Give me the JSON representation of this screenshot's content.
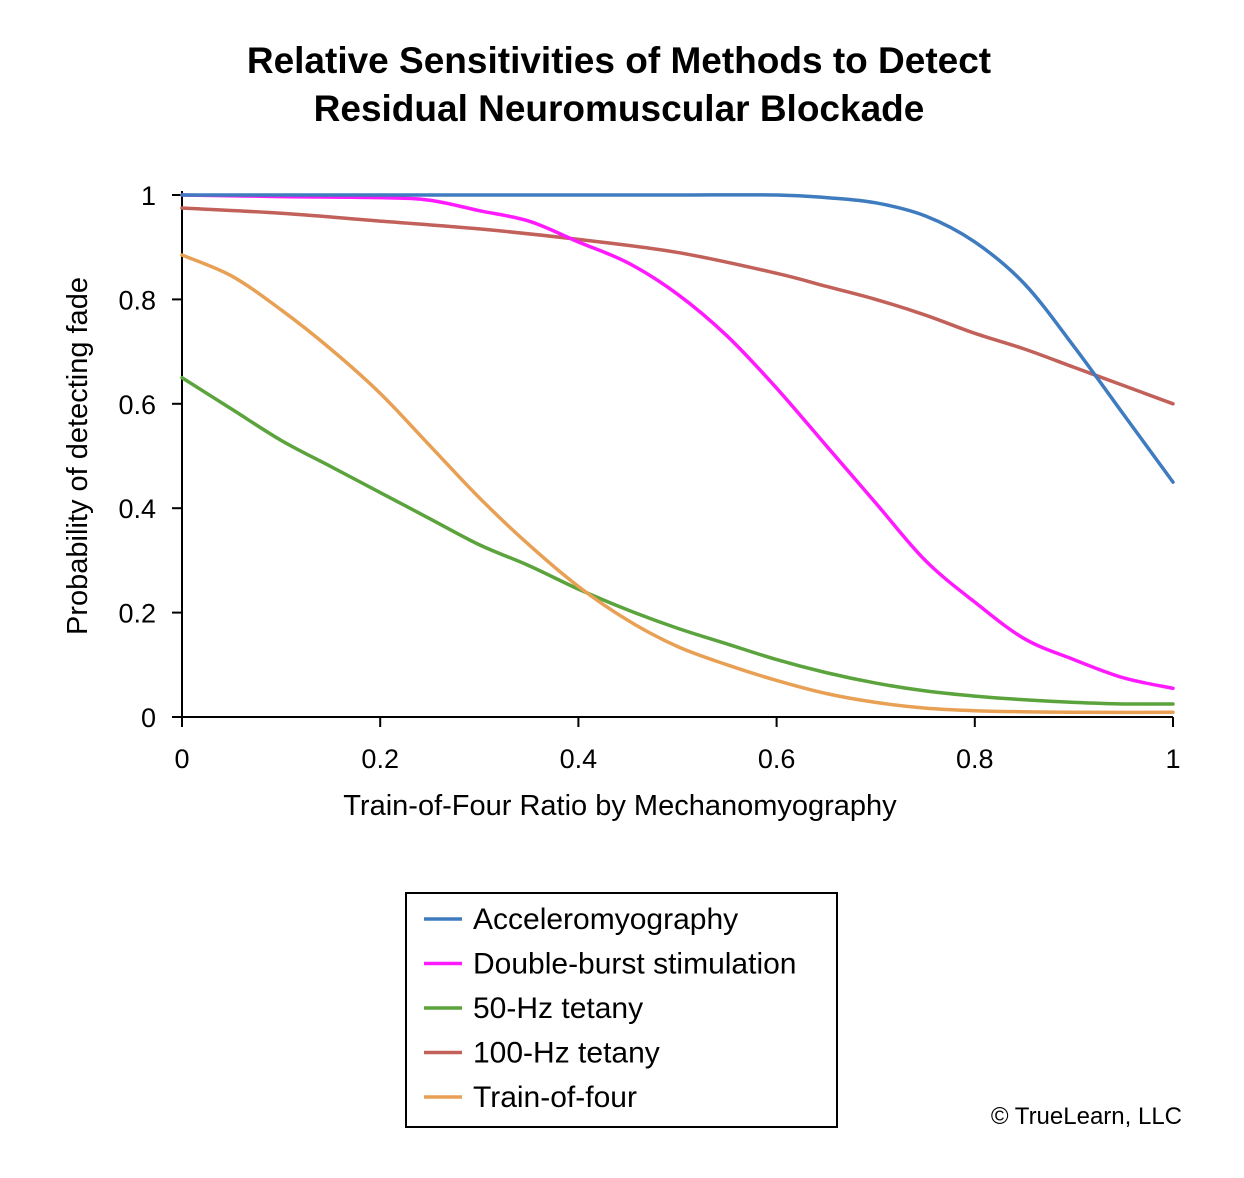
{
  "chart_data": {
    "type": "line",
    "title_lines": [
      "Relative Sensitivities of Methods to Detect",
      "Residual Neuromuscular Blockade"
    ],
    "xlabel": "Train-of-Four Ratio by Mechanomyography",
    "ylabel": "Probability of detecting fade",
    "xlim": [
      0,
      1
    ],
    "ylim": [
      0,
      1
    ],
    "x_ticks": [
      {
        "value": 0,
        "label": "0"
      },
      {
        "value": 0.2,
        "label": "0.2"
      },
      {
        "value": 0.4,
        "label": "0.4"
      },
      {
        "value": 0.6,
        "label": "0.6"
      },
      {
        "value": 0.8,
        "label": "0.8"
      },
      {
        "value": 1,
        "label": "1"
      }
    ],
    "y_ticks": [
      {
        "value": 0,
        "label": "0"
      },
      {
        "value": 0.2,
        "label": "0.2"
      },
      {
        "value": 0.4,
        "label": "0.4"
      },
      {
        "value": 0.6,
        "label": "0.6"
      },
      {
        "value": 0.8,
        "label": "0.8"
      },
      {
        "value": 1,
        "label": "1"
      }
    ],
    "grid": false,
    "legend_position": "bottom-center",
    "series": [
      {
        "name": "Acceleromyography",
        "color": "#3e7bbf",
        "points": [
          [
            0,
            1.0
          ],
          [
            0.1,
            1.0
          ],
          [
            0.2,
            1.0
          ],
          [
            0.3,
            1.0
          ],
          [
            0.4,
            1.0
          ],
          [
            0.5,
            1.0
          ],
          [
            0.6,
            1.0
          ],
          [
            0.65,
            0.995
          ],
          [
            0.7,
            0.985
          ],
          [
            0.75,
            0.96
          ],
          [
            0.8,
            0.91
          ],
          [
            0.85,
            0.83
          ],
          [
            0.9,
            0.71
          ],
          [
            0.95,
            0.58
          ],
          [
            1.0,
            0.45
          ]
        ]
      },
      {
        "name": "Double-burst stimulation",
        "color": "#ff1aff",
        "points": [
          [
            0,
            1.0
          ],
          [
            0.1,
            0.997
          ],
          [
            0.2,
            0.995
          ],
          [
            0.25,
            0.99
          ],
          [
            0.3,
            0.97
          ],
          [
            0.35,
            0.95
          ],
          [
            0.4,
            0.91
          ],
          [
            0.45,
            0.87
          ],
          [
            0.5,
            0.81
          ],
          [
            0.55,
            0.73
          ],
          [
            0.6,
            0.63
          ],
          [
            0.65,
            0.52
          ],
          [
            0.7,
            0.41
          ],
          [
            0.75,
            0.3
          ],
          [
            0.8,
            0.22
          ],
          [
            0.85,
            0.15
          ],
          [
            0.9,
            0.11
          ],
          [
            0.95,
            0.075
          ],
          [
            1.0,
            0.055
          ]
        ]
      },
      {
        "name": "50-Hz tetany",
        "color": "#5ba33c",
        "points": [
          [
            0,
            0.65
          ],
          [
            0.05,
            0.59
          ],
          [
            0.1,
            0.53
          ],
          [
            0.15,
            0.48
          ],
          [
            0.2,
            0.43
          ],
          [
            0.25,
            0.38
          ],
          [
            0.3,
            0.33
          ],
          [
            0.35,
            0.29
          ],
          [
            0.4,
            0.245
          ],
          [
            0.45,
            0.205
          ],
          [
            0.5,
            0.17
          ],
          [
            0.55,
            0.14
          ],
          [
            0.6,
            0.11
          ],
          [
            0.65,
            0.085
          ],
          [
            0.7,
            0.065
          ],
          [
            0.75,
            0.05
          ],
          [
            0.8,
            0.04
          ],
          [
            0.85,
            0.033
          ],
          [
            0.9,
            0.028
          ],
          [
            0.95,
            0.025
          ],
          [
            1.0,
            0.025
          ]
        ]
      },
      {
        "name": "100-Hz tetany",
        "color": "#c2605a",
        "points": [
          [
            0,
            0.975
          ],
          [
            0.1,
            0.965
          ],
          [
            0.2,
            0.95
          ],
          [
            0.3,
            0.935
          ],
          [
            0.4,
            0.915
          ],
          [
            0.5,
            0.89
          ],
          [
            0.6,
            0.85
          ],
          [
            0.65,
            0.825
          ],
          [
            0.7,
            0.8
          ],
          [
            0.75,
            0.77
          ],
          [
            0.8,
            0.735
          ],
          [
            0.85,
            0.705
          ],
          [
            0.9,
            0.67
          ],
          [
            0.95,
            0.635
          ],
          [
            1.0,
            0.6
          ]
        ]
      },
      {
        "name": "Train-of-four",
        "color": "#e8a055",
        "points": [
          [
            0,
            0.885
          ],
          [
            0.05,
            0.845
          ],
          [
            0.1,
            0.78
          ],
          [
            0.15,
            0.705
          ],
          [
            0.2,
            0.62
          ],
          [
            0.25,
            0.52
          ],
          [
            0.3,
            0.42
          ],
          [
            0.35,
            0.33
          ],
          [
            0.4,
            0.25
          ],
          [
            0.45,
            0.185
          ],
          [
            0.5,
            0.135
          ],
          [
            0.55,
            0.1
          ],
          [
            0.6,
            0.07
          ],
          [
            0.65,
            0.045
          ],
          [
            0.7,
            0.028
          ],
          [
            0.75,
            0.017
          ],
          [
            0.8,
            0.012
          ],
          [
            0.85,
            0.01
          ],
          [
            0.9,
            0.009
          ],
          [
            1.0,
            0.009
          ]
        ]
      }
    ]
  },
  "copyright": "© TrueLearn, LLC"
}
